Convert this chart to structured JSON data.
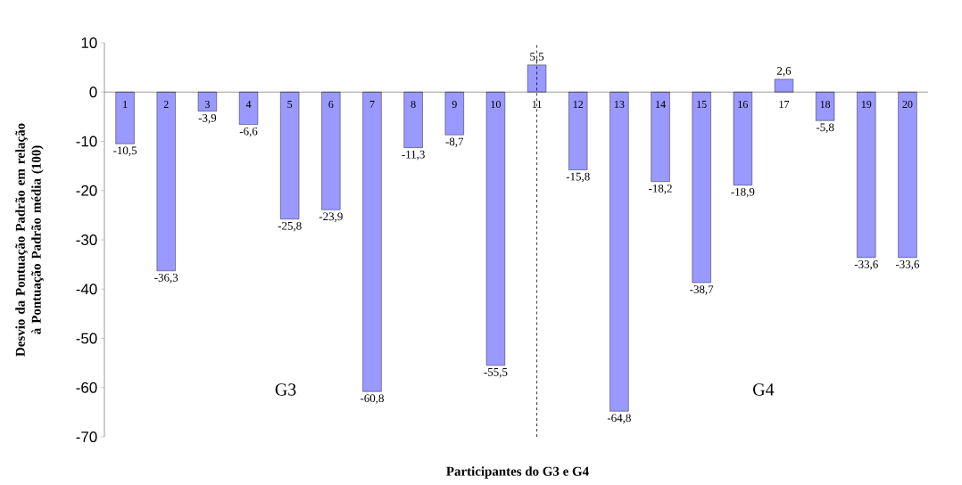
{
  "chart_data": {
    "type": "bar",
    "ylabel": "Desvio da Pontuação Padrão em relação à Pontuação Padrão média  (100)",
    "xlabel": "Participantes do G3 e G4",
    "categories": [
      "1",
      "2",
      "3",
      "4",
      "5",
      "6",
      "7",
      "8",
      "9",
      "10",
      "11",
      "12",
      "13",
      "14",
      "15",
      "16",
      "17",
      "18",
      "19",
      "20"
    ],
    "values": [
      -10.5,
      -36.3,
      -3.9,
      -6.6,
      -25.8,
      -23.9,
      -60.8,
      -11.3,
      -8.7,
      -55.5,
      5.5,
      -15.8,
      -64.8,
      -18.2,
      -38.7,
      -18.9,
      2.6,
      -5.8,
      -33.6,
      -33.6
    ],
    "value_labels": [
      "-10,5",
      "-36,3",
      "-3,9",
      "-6,6",
      "-25,8",
      "-23,9",
      "-60,8",
      "-11,3",
      "-8,7",
      "-55,5",
      "5,5",
      "-15,8",
      "-64,8",
      "-18,2",
      "-38,7",
      "-18,9",
      "2,6",
      "-5,8",
      "-33,6",
      "-33,6"
    ],
    "color": "#9999ff",
    "ylim": [
      -70,
      10
    ],
    "yticks": [
      -70,
      -60,
      -50,
      -40,
      -30,
      -20,
      -10,
      0,
      10
    ],
    "annotations": [
      "G3",
      "G4"
    ],
    "ref_lines": [
      {
        "axis": "x",
        "value": "11",
        "line_style": "dashed"
      }
    ],
    "grid": false
  }
}
